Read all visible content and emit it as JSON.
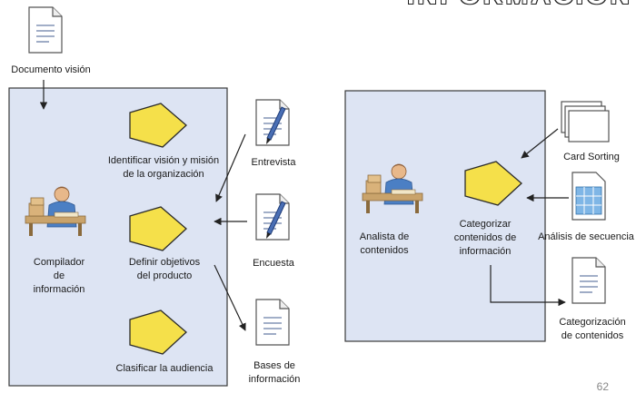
{
  "slide": {
    "title": "INFORMACIÓN",
    "page_number": "62"
  },
  "left_diagram": {
    "source_doc": "Documento visión",
    "actor": "Compilador\nde\ninformación",
    "activities": [
      "Identificar visión y misión\nde la organización",
      "Definir objetivos\ndel producto",
      "Clasificar la audiencia"
    ],
    "inputs": [
      "Entrevista",
      "Encuesta"
    ],
    "output": "Bases de\ninformación"
  },
  "right_diagram": {
    "actor": "Analista de\ncontenidos",
    "activity": "Categorizar\ncontenidos de\ninformación",
    "inputs": [
      "Card Sorting",
      "Análisis de secuencia"
    ],
    "output": "Categorización\nde contenidos"
  },
  "colors": {
    "panel_fill": "#dde4f3",
    "panel_border": "#3a3a3a",
    "pentagon_fill": "#f5e04a",
    "pentagon_stroke": "#2b2b2b"
  }
}
